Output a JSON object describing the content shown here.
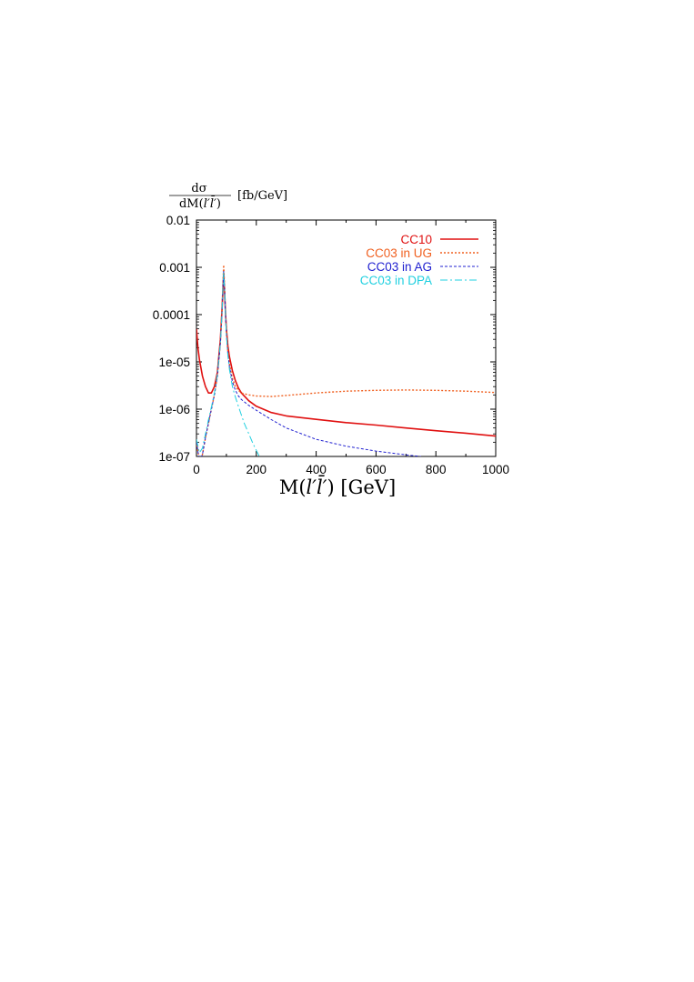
{
  "chart_data": {
    "type": "line",
    "ylabel": {
      "numerator": "dσ",
      "denominator_prefix": "dM(",
      "denominator_vars": "l′l̄′",
      "denominator_suffix": ")",
      "unit": "[fb/GeV]"
    },
    "xlabel": {
      "prefix": "M(",
      "vars": "l′l̄′",
      "suffix": ") [GeV]"
    },
    "xlim": [
      0,
      1000
    ],
    "ylim": [
      1e-07,
      0.01
    ],
    "yscale": "log",
    "grid": false,
    "legend_position": "top-right",
    "x_ticks": [
      "0",
      "200",
      "400",
      "600",
      "800",
      "1000"
    ],
    "y_ticks": [
      "0.01",
      "0.001",
      "0.0001",
      "1e-05",
      "1e-06",
      "1e-07"
    ],
    "series": [
      {
        "name": "CC10",
        "color": "#e01010",
        "style": "solid",
        "x": [
          0,
          5,
          10,
          20,
          30,
          40,
          50,
          60,
          70,
          80,
          85,
          88,
          91,
          94,
          97,
          100,
          105,
          110,
          120,
          130,
          140,
          150,
          175,
          200,
          250,
          300,
          400,
          500,
          600,
          700,
          800,
          900,
          1000
        ],
        "y": [
          5e-05,
          2e-05,
          1.1e-05,
          5e-06,
          3e-06,
          2.2e-06,
          2.2e-06,
          3e-06,
          6e-06,
          3e-05,
          0.00012,
          0.0003,
          0.00075,
          0.0003,
          0.00011,
          5e-05,
          2.2e-05,
          1.3e-05,
          6.5e-06,
          4e-06,
          2.8e-06,
          2.2e-06,
          1.5e-06,
          1.15e-06,
          8.5e-07,
          7.2e-07,
          6.1e-07,
          5.2e-07,
          4.6e-07,
          4e-07,
          3.5e-07,
          3.1e-07,
          2.7e-07
        ]
      },
      {
        "name": "CC03 in UG",
        "color": "#f06020",
        "style": "dotted",
        "x": [
          0,
          10,
          20,
          30,
          40,
          50,
          60,
          70,
          80,
          85,
          88,
          91,
          94,
          97,
          100,
          105,
          110,
          120,
          130,
          140,
          150,
          175,
          200,
          250,
          300,
          400,
          500,
          600,
          700,
          800,
          900,
          1000
        ],
        "y": [
          2e-07,
          8e-08,
          1.1e-07,
          2.5e-07,
          5e-07,
          1e-06,
          2e-06,
          5e-06,
          2.5e-05,
          0.00012,
          0.0004,
          0.00112,
          0.0004,
          0.00012,
          4.5e-05,
          1.7e-05,
          9e-06,
          4.5e-06,
          3e-06,
          2.5e-06,
          2.2e-06,
          2e-06,
          1.9e-06,
          1.85e-06,
          1.95e-06,
          2.2e-06,
          2.4e-06,
          2.5e-06,
          2.55e-06,
          2.5e-06,
          2.4e-06,
          2.25e-06
        ]
      },
      {
        "name": "CC03 in AG",
        "color": "#2020d0",
        "style": "dashed",
        "x": [
          0,
          10,
          20,
          30,
          40,
          50,
          60,
          70,
          80,
          85,
          88,
          91,
          94,
          97,
          100,
          105,
          110,
          120,
          130,
          140,
          150,
          175,
          200,
          250,
          300,
          400,
          500,
          600,
          700,
          750
        ],
        "y": [
          2e-07,
          8e-08,
          1.1e-07,
          2.5e-07,
          5e-07,
          1e-06,
          2e-06,
          5e-06,
          2.5e-05,
          0.0001,
          0.00035,
          0.00082,
          0.00035,
          0.0001,
          4e-05,
          1.5e-05,
          8e-06,
          3.8e-06,
          2.5e-06,
          1.9e-06,
          1.6e-06,
          1.2e-06,
          9.5e-07,
          6e-07,
          4e-07,
          2.3e-07,
          1.65e-07,
          1.3e-07,
          1.08e-07,
          1e-07
        ]
      },
      {
        "name": "CC03 in DPA",
        "color": "#20d0e0",
        "style": "dashdot",
        "x": [
          0,
          10,
          20,
          30,
          40,
          50,
          60,
          70,
          80,
          85,
          88,
          91,
          94,
          97,
          100,
          105,
          110,
          120,
          130,
          140,
          150,
          160,
          175,
          190,
          200,
          210
        ],
        "y": [
          2.3e-07,
          1.2e-07,
          1.5e-07,
          3e-07,
          6e-07,
          1.1e-06,
          2.2e-06,
          5.5e-06,
          2.5e-05,
          0.0001,
          0.00035,
          0.00078,
          0.00035,
          0.0001,
          3.8e-05,
          1.4e-05,
          7e-06,
          3e-06,
          1.8e-06,
          1.15e-06,
          7.5e-07,
          5e-07,
          3e-07,
          1.8e-07,
          1.35e-07,
          1e-07
        ]
      }
    ]
  }
}
